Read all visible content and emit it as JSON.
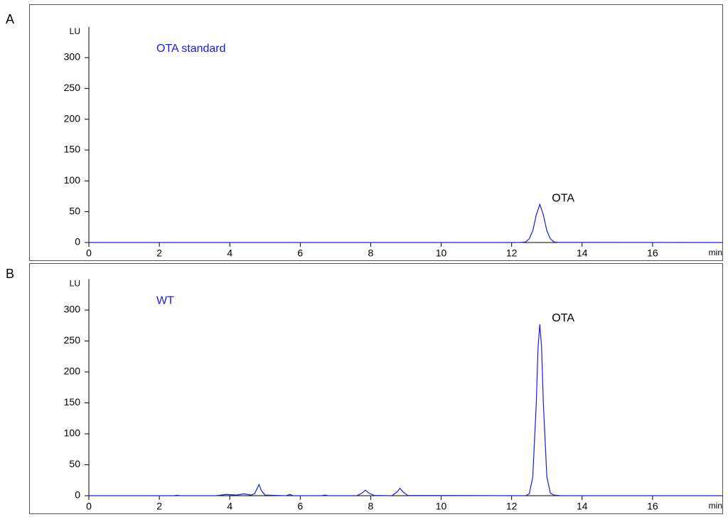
{
  "chart_data": [
    {
      "type": "line",
      "panel_label": "A",
      "annotation": "OTA standard",
      "peak_label": "OTA",
      "y_label": "LU",
      "x_label": "min",
      "color": "#1a1ae6",
      "annotation_color": "#1a1ae6",
      "x": [
        0,
        12.1,
        12.3,
        12.4,
        12.5,
        12.6,
        12.7,
        12.8,
        12.9,
        13.0,
        13.1,
        13.2,
        13.3,
        18
      ],
      "values": [
        0,
        0,
        0.3,
        1,
        6,
        19,
        45,
        62,
        45,
        19,
        6,
        1,
        0.3,
        0
      ],
      "xlim": [
        0,
        18
      ],
      "xticks": [
        0,
        2,
        4,
        6,
        8,
        10,
        12,
        14,
        16
      ],
      "ylim": [
        0,
        350
      ],
      "yticks": [
        0,
        50,
        100,
        150,
        200,
        250,
        300
      ]
    },
    {
      "type": "line",
      "panel_label": "B",
      "annotation": "WT",
      "peak_label": "OTA",
      "y_label": "LU",
      "x_label": "min",
      "color": "#1a1ae6",
      "annotation_color": "#1a1ae6",
      "x": [
        0,
        2.4,
        2.5,
        2.6,
        3.6,
        3.9,
        4.2,
        4.4,
        4.6,
        4.7,
        4.78,
        4.83,
        4.9,
        5.0,
        5.3,
        5.6,
        5.7,
        5.8,
        6.6,
        6.7,
        6.8,
        7.6,
        7.75,
        7.85,
        7.95,
        8.1,
        8.6,
        8.75,
        8.83,
        8.92,
        9.05,
        12.4,
        12.5,
        12.6,
        12.7,
        12.75,
        12.8,
        12.85,
        12.9,
        13.0,
        13.1,
        13.2,
        13.4,
        18
      ],
      "values": [
        0,
        0,
        0.8,
        0,
        0,
        2,
        1,
        3,
        1,
        3,
        12,
        18,
        8,
        1,
        0.5,
        0,
        2,
        0,
        0,
        1,
        0,
        0,
        4,
        9,
        4,
        0.5,
        0,
        6,
        12,
        6,
        0.5,
        0,
        3,
        30,
        150,
        240,
        277,
        240,
        150,
        30,
        4,
        1,
        0,
        0
      ],
      "xlim": [
        0,
        18
      ],
      "xticks": [
        0,
        2,
        4,
        6,
        8,
        10,
        12,
        14,
        16
      ],
      "ylim": [
        0,
        350
      ],
      "yticks": [
        0,
        50,
        100,
        150,
        200,
        250,
        300
      ]
    }
  ]
}
